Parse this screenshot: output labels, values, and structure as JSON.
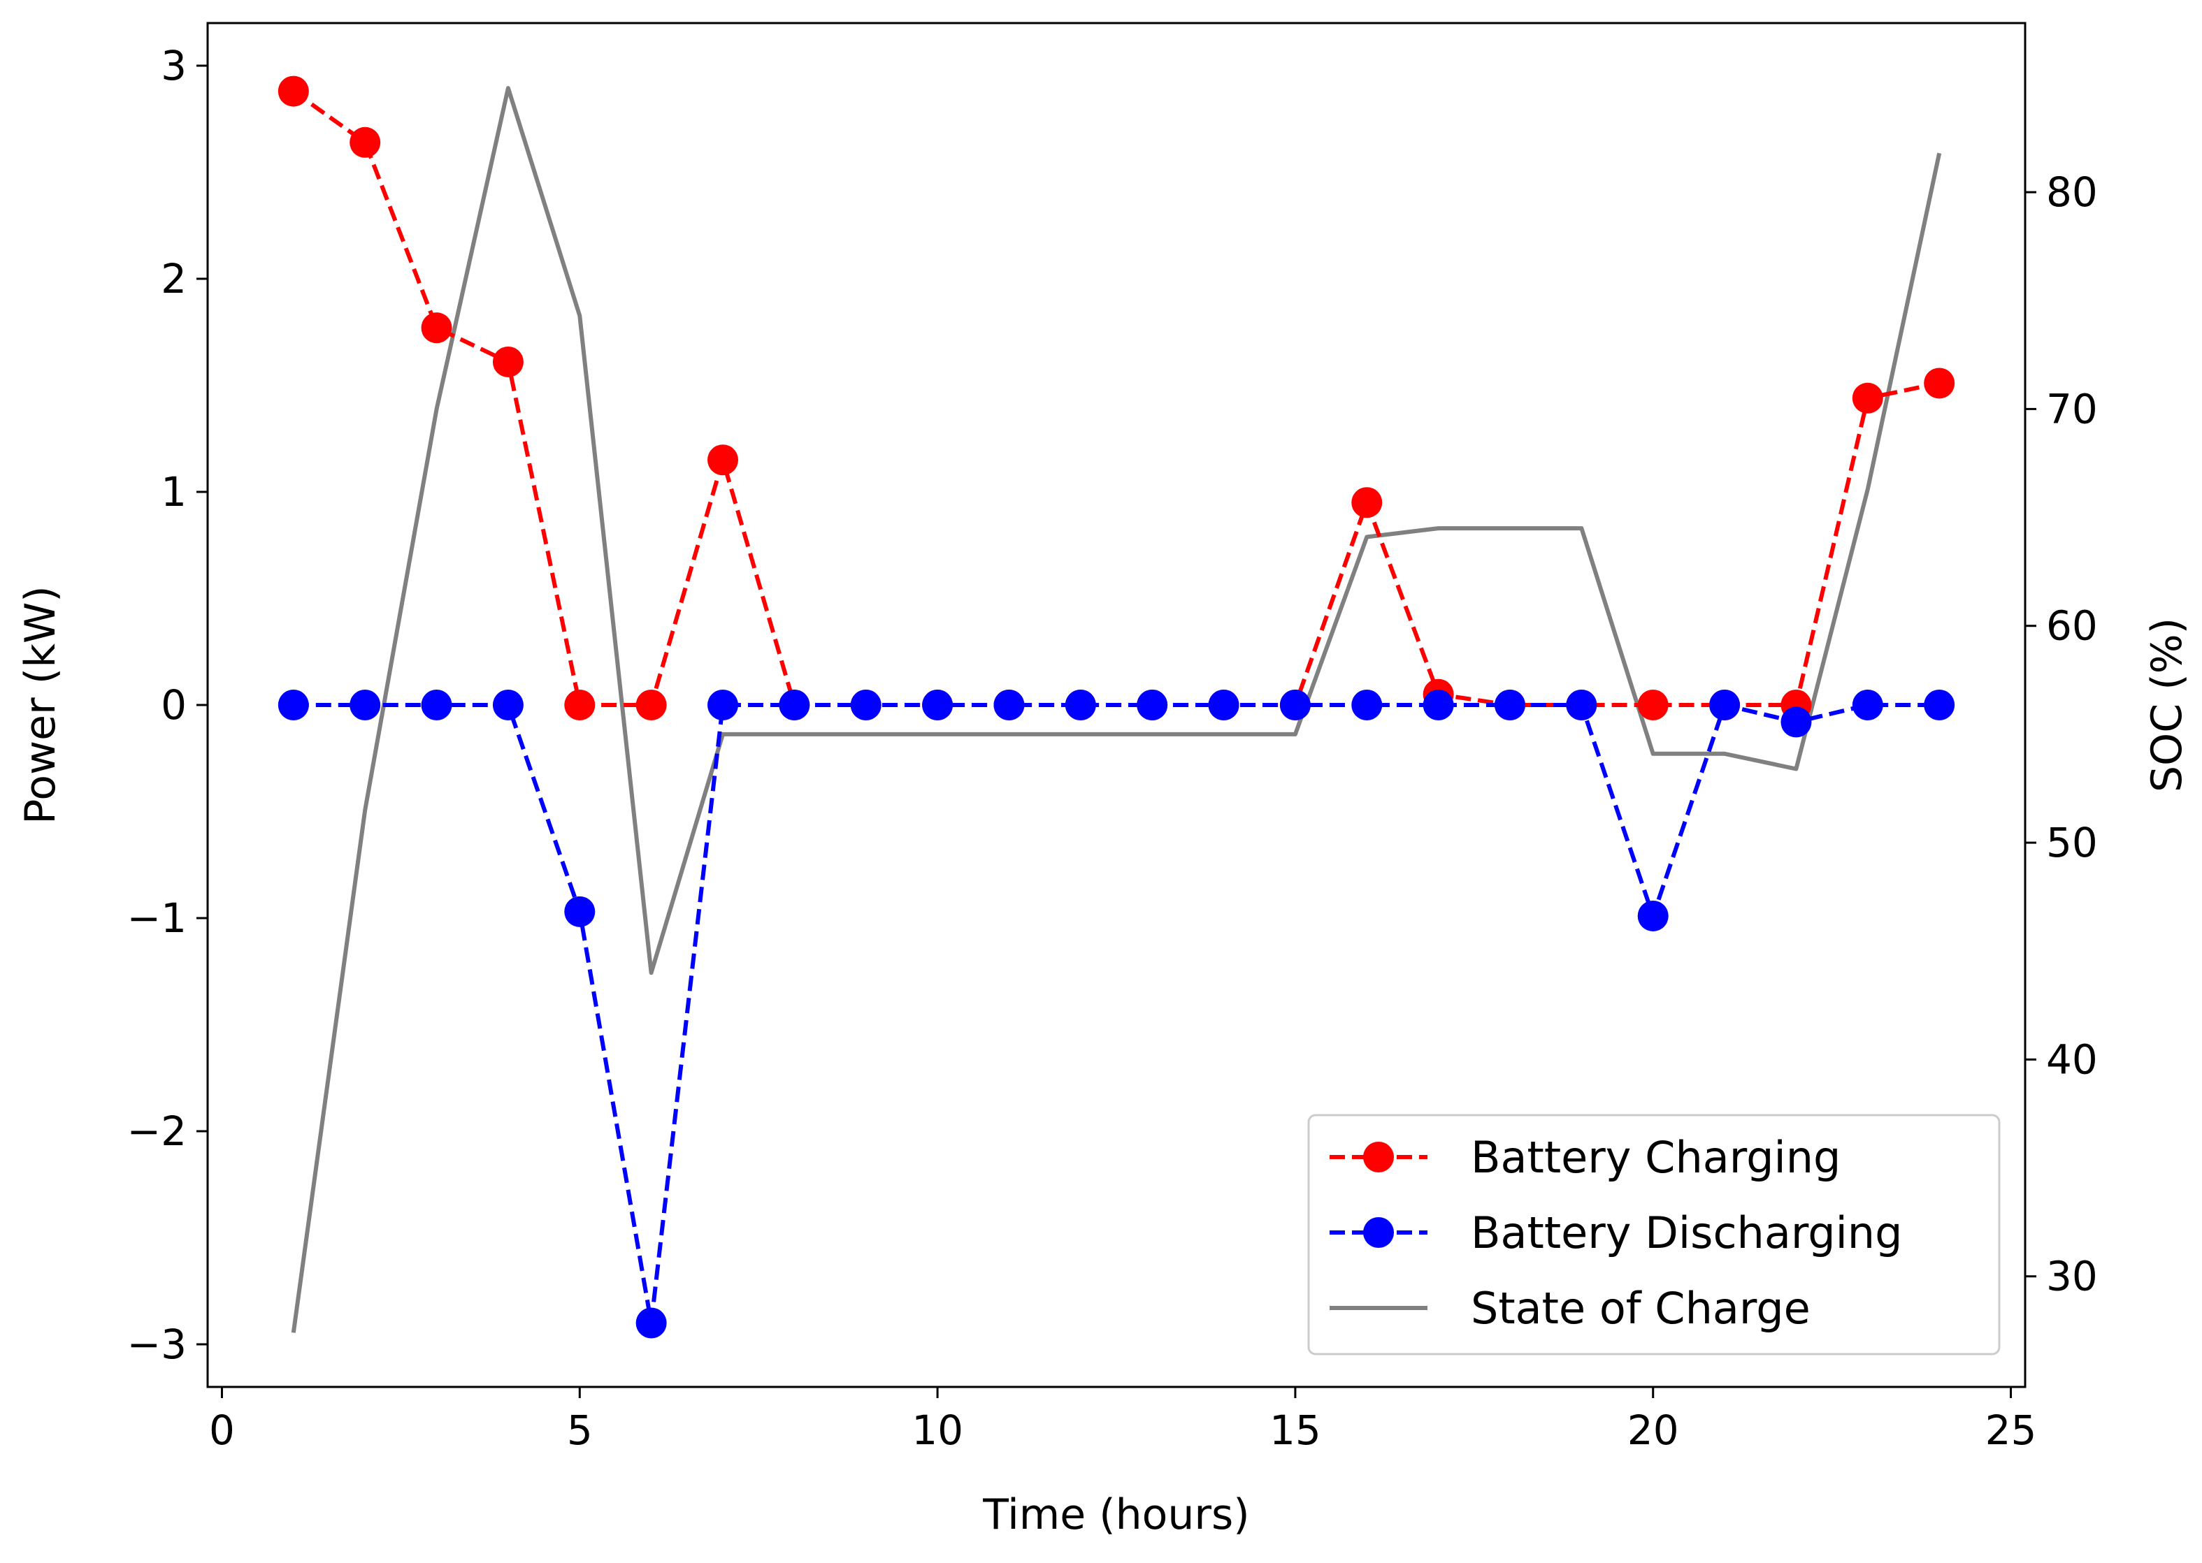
{
  "chart_data": {
    "type": "line",
    "title": "",
    "xlabel": "Time (hours)",
    "ylabel": "Power (kW)",
    "y2label": "SOC (%)",
    "xlim": [
      -0.2,
      25.2
    ],
    "ylim": [
      -3.2,
      3.2
    ],
    "y2lim": [
      24.9,
      87.8
    ],
    "xticks": [
      0,
      5,
      10,
      15,
      20,
      25
    ],
    "xtick_labels": [
      "0",
      "5",
      "10",
      "15",
      "20",
      "25"
    ],
    "yticks": [
      -3,
      -2,
      -1,
      0,
      1,
      2,
      3
    ],
    "ytick_labels": [
      "−3",
      "−2",
      "−1",
      "0",
      "1",
      "2",
      "3"
    ],
    "y2ticks": [
      30,
      40,
      50,
      60,
      70,
      80
    ],
    "y2tick_labels": [
      "30",
      "40",
      "50",
      "60",
      "70",
      "80"
    ],
    "grid": false,
    "legend_position": "lower-right",
    "x": [
      1,
      2,
      3,
      4,
      5,
      6,
      7,
      8,
      9,
      10,
      11,
      12,
      13,
      14,
      15,
      16,
      17,
      18,
      19,
      20,
      21,
      22,
      23,
      24
    ],
    "series": [
      {
        "name": "Battery Charging",
        "axis": "left",
        "color": "#ff0000",
        "style": "dashed-marker",
        "values": [
          2.88,
          2.64,
          1.77,
          1.61,
          0,
          0,
          1.15,
          0,
          0,
          0,
          0,
          0,
          0,
          0,
          0,
          0.95,
          0.05,
          0,
          0,
          0,
          0,
          0,
          1.44,
          1.51
        ]
      },
      {
        "name": "Battery Discharging",
        "axis": "left",
        "color": "#0000ff",
        "style": "dashed-marker",
        "values": [
          0,
          0,
          0,
          0,
          -0.97,
          -2.9,
          0,
          0,
          0,
          0,
          0,
          0,
          0,
          0,
          0,
          0,
          0,
          0,
          0,
          -0.99,
          0,
          -0.08,
          0,
          0
        ]
      },
      {
        "name": "State of Charge",
        "axis": "right",
        "color": "#808080",
        "style": "solid",
        "values": [
          27.4,
          51.5,
          70.0,
          84.8,
          74.3,
          44.0,
          55.0,
          55.0,
          55.0,
          55.0,
          55.0,
          55.0,
          55.0,
          55.0,
          55.0,
          64.1,
          64.5,
          64.5,
          64.5,
          54.1,
          54.1,
          53.4,
          66.3,
          81.8
        ]
      }
    ]
  }
}
